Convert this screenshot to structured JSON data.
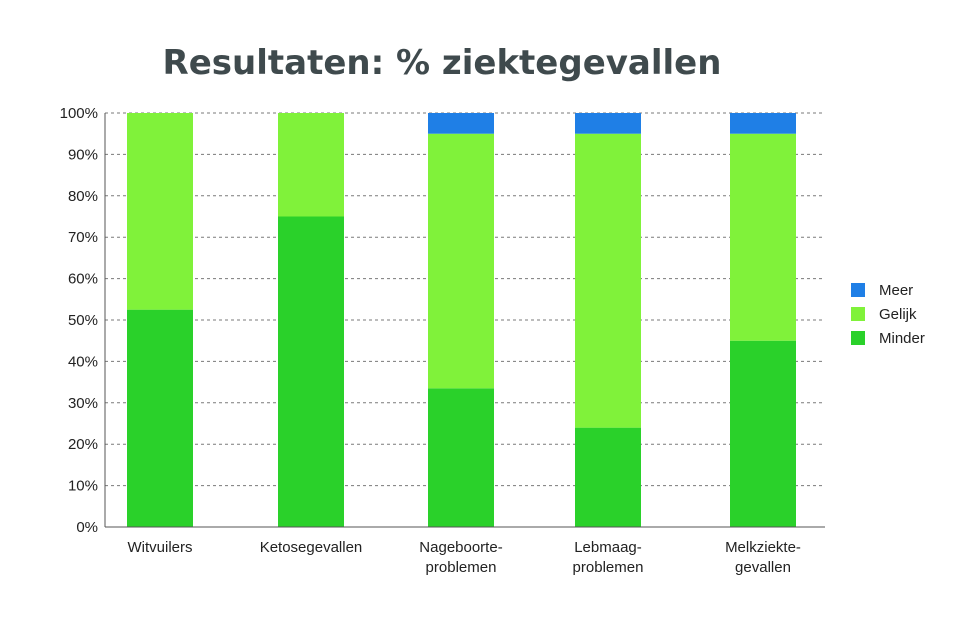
{
  "chart_data": {
    "type": "bar",
    "stacked": true,
    "title": "Resultaten: % ziektegevallen",
    "categories": [
      [
        "Witvuilers"
      ],
      [
        "Ketosegevallen"
      ],
      [
        "Nageboorte-",
        "problemen"
      ],
      [
        "Lebmaag-",
        "problemen"
      ],
      [
        "Melkziekte-",
        "gevallen"
      ]
    ],
    "series": [
      {
        "name": "Minder",
        "color": "#2ad12a",
        "values": [
          52.5,
          75,
          33.5,
          24,
          45
        ]
      },
      {
        "name": "Gelijk",
        "color": "#80f23a",
        "values": [
          47.5,
          25,
          61.5,
          71,
          50
        ]
      },
      {
        "name": "Meer",
        "color": "#1f7fe6",
        "values": [
          0,
          0,
          5,
          5,
          5
        ]
      }
    ],
    "ylim": [
      0,
      100
    ],
    "yticks": [
      "0%",
      "10%",
      "20%",
      "30%",
      "40%",
      "50%",
      "60%",
      "70%",
      "80%",
      "90%",
      "100%"
    ],
    "grid": true,
    "legend_order": [
      "Meer",
      "Gelijk",
      "Minder"
    ],
    "legend_position": "right"
  }
}
